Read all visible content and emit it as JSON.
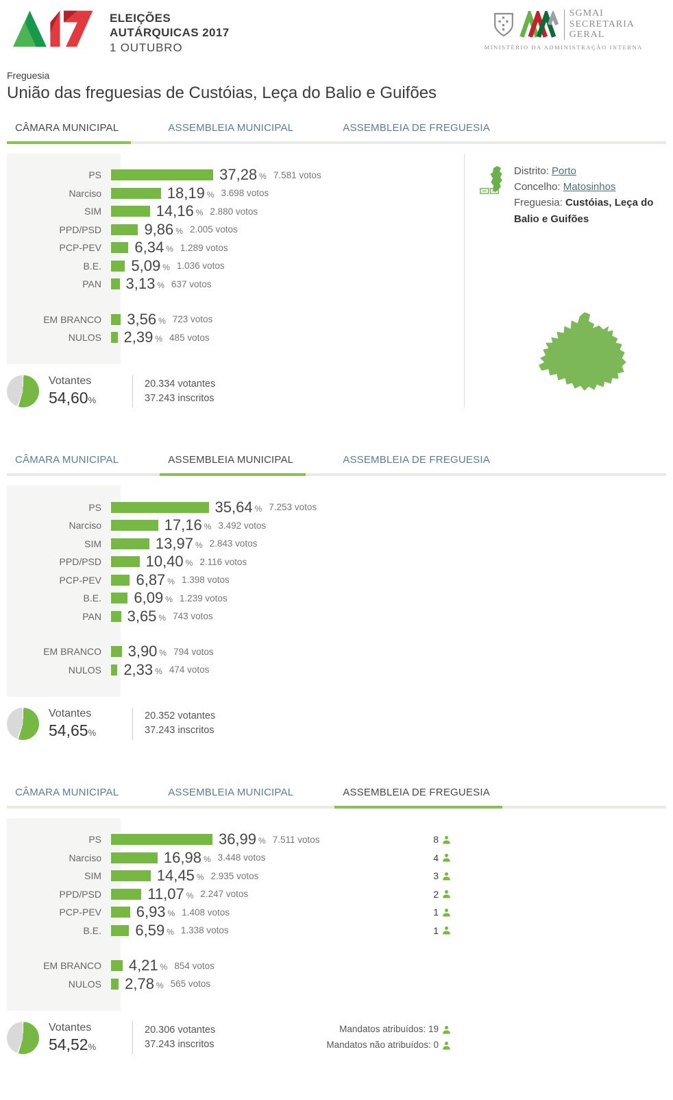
{
  "header": {
    "logo_line1": "ELEIÇÕES",
    "logo_line2": "AUTÁRQUICAS 2017",
    "logo_line3": "1 OUTUBRO",
    "sgmai_line1": "SGMAI",
    "sgmai_line2": "SECRETARIA",
    "sgmai_line3": "GERAL",
    "sgmai_subtitle": "MINISTÉRIO DA ADMINISTRAÇÃO INTERNA"
  },
  "page": {
    "kicker": "Freguesia",
    "title": "União das freguesias de Custóias, Leça do Balio e Guifões"
  },
  "tabs": [
    "CÂMARA MUNICIPAL",
    "ASSEMBLEIA MUNICIPAL",
    "ASSEMBLEIA DE FREGUESIA"
  ],
  "labels": {
    "percent_sign": "%"
  },
  "location": {
    "district_label": "Distrito:",
    "district": "Porto",
    "council_label": "Concelho:",
    "council": "Matosinhos",
    "parish_label": "Freguesia:",
    "parish": "Custóias, Leça do Balio e Guifões"
  },
  "colors": {
    "bar_green": "#76b843",
    "tab_underline_green": "#8cc152",
    "pie_gray": "#d9d9d9",
    "logo_green": "#4cb453",
    "logo_red": "#e13b40"
  },
  "sections": [
    {
      "name": "Câmara Municipal",
      "active_tab": 0,
      "results": [
        {
          "party": "PS",
          "pct": "37,28",
          "pct_value": 37.28,
          "votes": "7.581 votos"
        },
        {
          "party": "Narciso",
          "pct": "18,19",
          "pct_value": 18.19,
          "votes": "3.698 votos"
        },
        {
          "party": "SIM",
          "pct": "14,16",
          "pct_value": 14.16,
          "votes": "2.880 votos"
        },
        {
          "party": "PPD/PSD",
          "pct": "9,86",
          "pct_value": 9.86,
          "votes": "2.005 votos"
        },
        {
          "party": "PCP-PEV",
          "pct": "6,34",
          "pct_value": 6.34,
          "votes": "1.289 votos"
        },
        {
          "party": "B.E.",
          "pct": "5,09",
          "pct_value": 5.09,
          "votes": "1.036 votos"
        },
        {
          "party": "PAN",
          "pct": "3,13",
          "pct_value": 3.13,
          "votes": "637 votos"
        }
      ],
      "blank": {
        "party": "EM BRANCO",
        "pct": "3,56",
        "pct_value": 3.56,
        "votes": "723 votos"
      },
      "nulos": {
        "party": "NULOS",
        "pct": "2,39",
        "pct_value": 2.39,
        "votes": "485 votos"
      },
      "turnout": {
        "label": "Votantes",
        "pct": "54,60",
        "pct_value": 54.6,
        "voters": "20.334 votantes",
        "registered": "37.243 inscritos"
      }
    },
    {
      "name": "Assembleia Municipal",
      "active_tab": 1,
      "results": [
        {
          "party": "PS",
          "pct": "35,64",
          "pct_value": 35.64,
          "votes": "7.253 votos"
        },
        {
          "party": "Narciso",
          "pct": "17,16",
          "pct_value": 17.16,
          "votes": "3.492 votos"
        },
        {
          "party": "SIM",
          "pct": "13,97",
          "pct_value": 13.97,
          "votes": "2.843 votos"
        },
        {
          "party": "PPD/PSD",
          "pct": "10,40",
          "pct_value": 10.4,
          "votes": "2.116 votos"
        },
        {
          "party": "PCP-PEV",
          "pct": "6,87",
          "pct_value": 6.87,
          "votes": "1.398 votos"
        },
        {
          "party": "B.E.",
          "pct": "6,09",
          "pct_value": 6.09,
          "votes": "1.239 votos"
        },
        {
          "party": "PAN",
          "pct": "3,65",
          "pct_value": 3.65,
          "votes": "743 votos"
        }
      ],
      "blank": {
        "party": "EM BRANCO",
        "pct": "3,90",
        "pct_value": 3.9,
        "votes": "794 votos"
      },
      "nulos": {
        "party": "NULOS",
        "pct": "2,33",
        "pct_value": 2.33,
        "votes": "474 votos"
      },
      "turnout": {
        "label": "Votantes",
        "pct": "54,65",
        "pct_value": 54.65,
        "voters": "20.352 votantes",
        "registered": "37.243 inscritos"
      }
    },
    {
      "name": "Assembleia de Freguesia",
      "active_tab": 2,
      "results": [
        {
          "party": "PS",
          "pct": "36,99",
          "pct_value": 36.99,
          "votes": "7.511 votos"
        },
        {
          "party": "Narciso",
          "pct": "16,98",
          "pct_value": 16.98,
          "votes": "3.448 votos"
        },
        {
          "party": "SIM",
          "pct": "14,45",
          "pct_value": 14.45,
          "votes": "2.935 votos"
        },
        {
          "party": "PPD/PSD",
          "pct": "11,07",
          "pct_value": 11.07,
          "votes": "2.247 votos"
        },
        {
          "party": "PCP-PEV",
          "pct": "6,93",
          "pct_value": 6.93,
          "votes": "1.408 votos"
        },
        {
          "party": "B.E.",
          "pct": "6,59",
          "pct_value": 6.59,
          "votes": "1.338 votos"
        }
      ],
      "mandates": [
        8,
        4,
        3,
        2,
        1,
        1
      ],
      "blank": {
        "party": "EM BRANCO",
        "pct": "4,21",
        "pct_value": 4.21,
        "votes": "854 votos"
      },
      "nulos": {
        "party": "NULOS",
        "pct": "2,78",
        "pct_value": 2.78,
        "votes": "565 votos"
      },
      "turnout": {
        "label": "Votantes",
        "pct": "54,52",
        "pct_value": 54.52,
        "voters": "20.306 votantes",
        "registered": "37.243 inscritos"
      },
      "mandates_summary": {
        "attributed": "Mandatos atribuídos: 19",
        "not_attributed": "Mandatos não atribuídos: 0"
      }
    }
  ]
}
